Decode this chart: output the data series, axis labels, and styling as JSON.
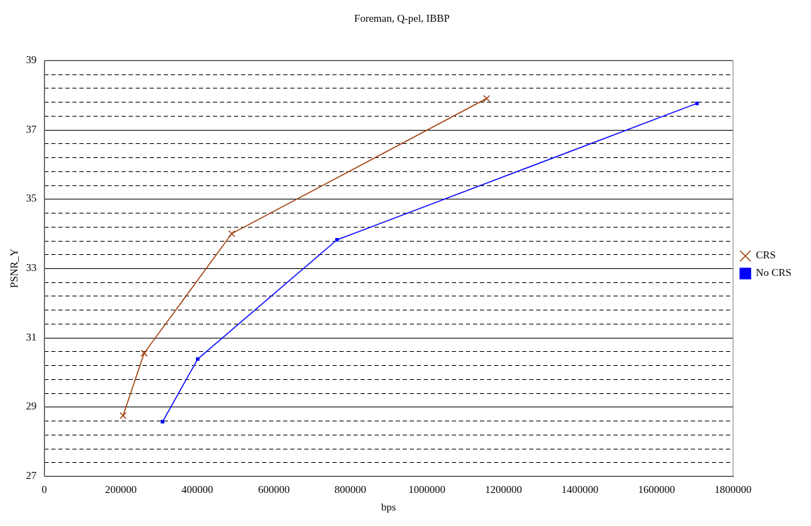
{
  "chart_data": {
    "type": "line",
    "title": "Foreman, Q-pel, IBBP",
    "xlabel": "bps",
    "ylabel": "PSNR_Y",
    "xlim": [
      0,
      1800000
    ],
    "xticks": [
      0,
      200000,
      400000,
      600000,
      800000,
      1000000,
      1200000,
      1400000,
      1600000,
      1800000
    ],
    "ylim": [
      27,
      39
    ],
    "yticks": [
      27,
      {
        "value": 27.4,
        "label": null
      },
      {
        "value": 27.8,
        "label": null
      },
      {
        "value": 28.2,
        "label": null
      },
      {
        "value": 28.6,
        "label": null
      },
      29,
      {
        "value": 29.4,
        "label": null
      },
      {
        "value": 29.8,
        "label": null
      },
      {
        "value": 30.2,
        "label": null
      },
      {
        "value": 30.6,
        "label": null
      },
      31,
      {
        "value": 31.4,
        "label": null
      },
      {
        "value": 31.8,
        "label": null
      },
      {
        "value": 32.2,
        "label": null
      },
      {
        "value": 32.6,
        "label": null
      },
      33,
      {
        "value": 33.4,
        "label": null
      },
      {
        "value": 33.8,
        "label": null
      },
      {
        "value": 34.2,
        "label": null
      },
      {
        "value": 34.6,
        "label": null
      },
      35,
      {
        "value": 35.4,
        "label": null
      },
      {
        "value": 35.8,
        "label": null
      },
      {
        "value": 36.2,
        "label": null
      },
      {
        "value": 36.6,
        "label": null
      },
      37,
      {
        "value": 37.4,
        "label": null
      },
      {
        "value": 37.8,
        "label": null
      },
      {
        "value": 38.2,
        "label": null
      },
      {
        "value": 38.6,
        "label": null
      },
      39
    ],
    "grid": "y",
    "legend": "right",
    "line_style": "solid",
    "series": [
      {
        "name": "CRS",
        "color": "#a0400e",
        "marker": "cross",
        "x": [
          206000,
          261000,
          490000,
          1156000
        ],
        "values": [
          28.75,
          30.55,
          34.0,
          37.9
        ]
      },
      {
        "name": "No CRS",
        "color": "#0000ff",
        "marker": "square",
        "x": [
          309000,
          401000,
          765000,
          1706000
        ],
        "values": [
          28.57,
          30.38,
          33.82,
          37.76
        ]
      }
    ]
  }
}
